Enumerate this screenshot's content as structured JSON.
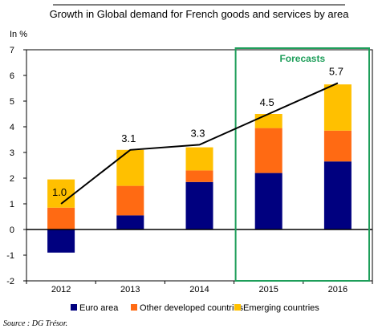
{
  "chart_data": {
    "type": "bar",
    "stacked": true,
    "title": "Growth in Global demand for French goods and services by area",
    "ylabel": "In %",
    "xlabel": "",
    "ylim": [
      -2,
      7
    ],
    "yticks": [
      -2,
      -1,
      0,
      1,
      2,
      3,
      4,
      5,
      6,
      7
    ],
    "categories": [
      "2012",
      "2013",
      "2014",
      "2015",
      "2016"
    ],
    "series": [
      {
        "name": "Euro area",
        "color": "#00007f",
        "values": [
          -0.9,
          0.55,
          1.85,
          2.2,
          2.65
        ]
      },
      {
        "name": "Other developed countries",
        "color": "#ff6a13",
        "values": [
          0.85,
          1.15,
          0.45,
          1.75,
          1.2
        ]
      },
      {
        "name": "Emerging countries",
        "color": "#ffc000",
        "values": [
          1.1,
          1.4,
          0.9,
          0.55,
          1.8
        ]
      }
    ],
    "total_line": {
      "values": [
        1.0,
        3.1,
        3.3,
        4.5,
        5.7
      ],
      "labels": [
        "1.0",
        "3.1",
        "3.3",
        "4.5",
        "5.7"
      ],
      "color": "#000000"
    },
    "forecast_box": {
      "label": "Forecasts",
      "categories": [
        "2015",
        "2016"
      ],
      "color": "#1e9e5a"
    },
    "grid": false,
    "legend_position": "bottom",
    "source": "Source : DG Trésor."
  }
}
